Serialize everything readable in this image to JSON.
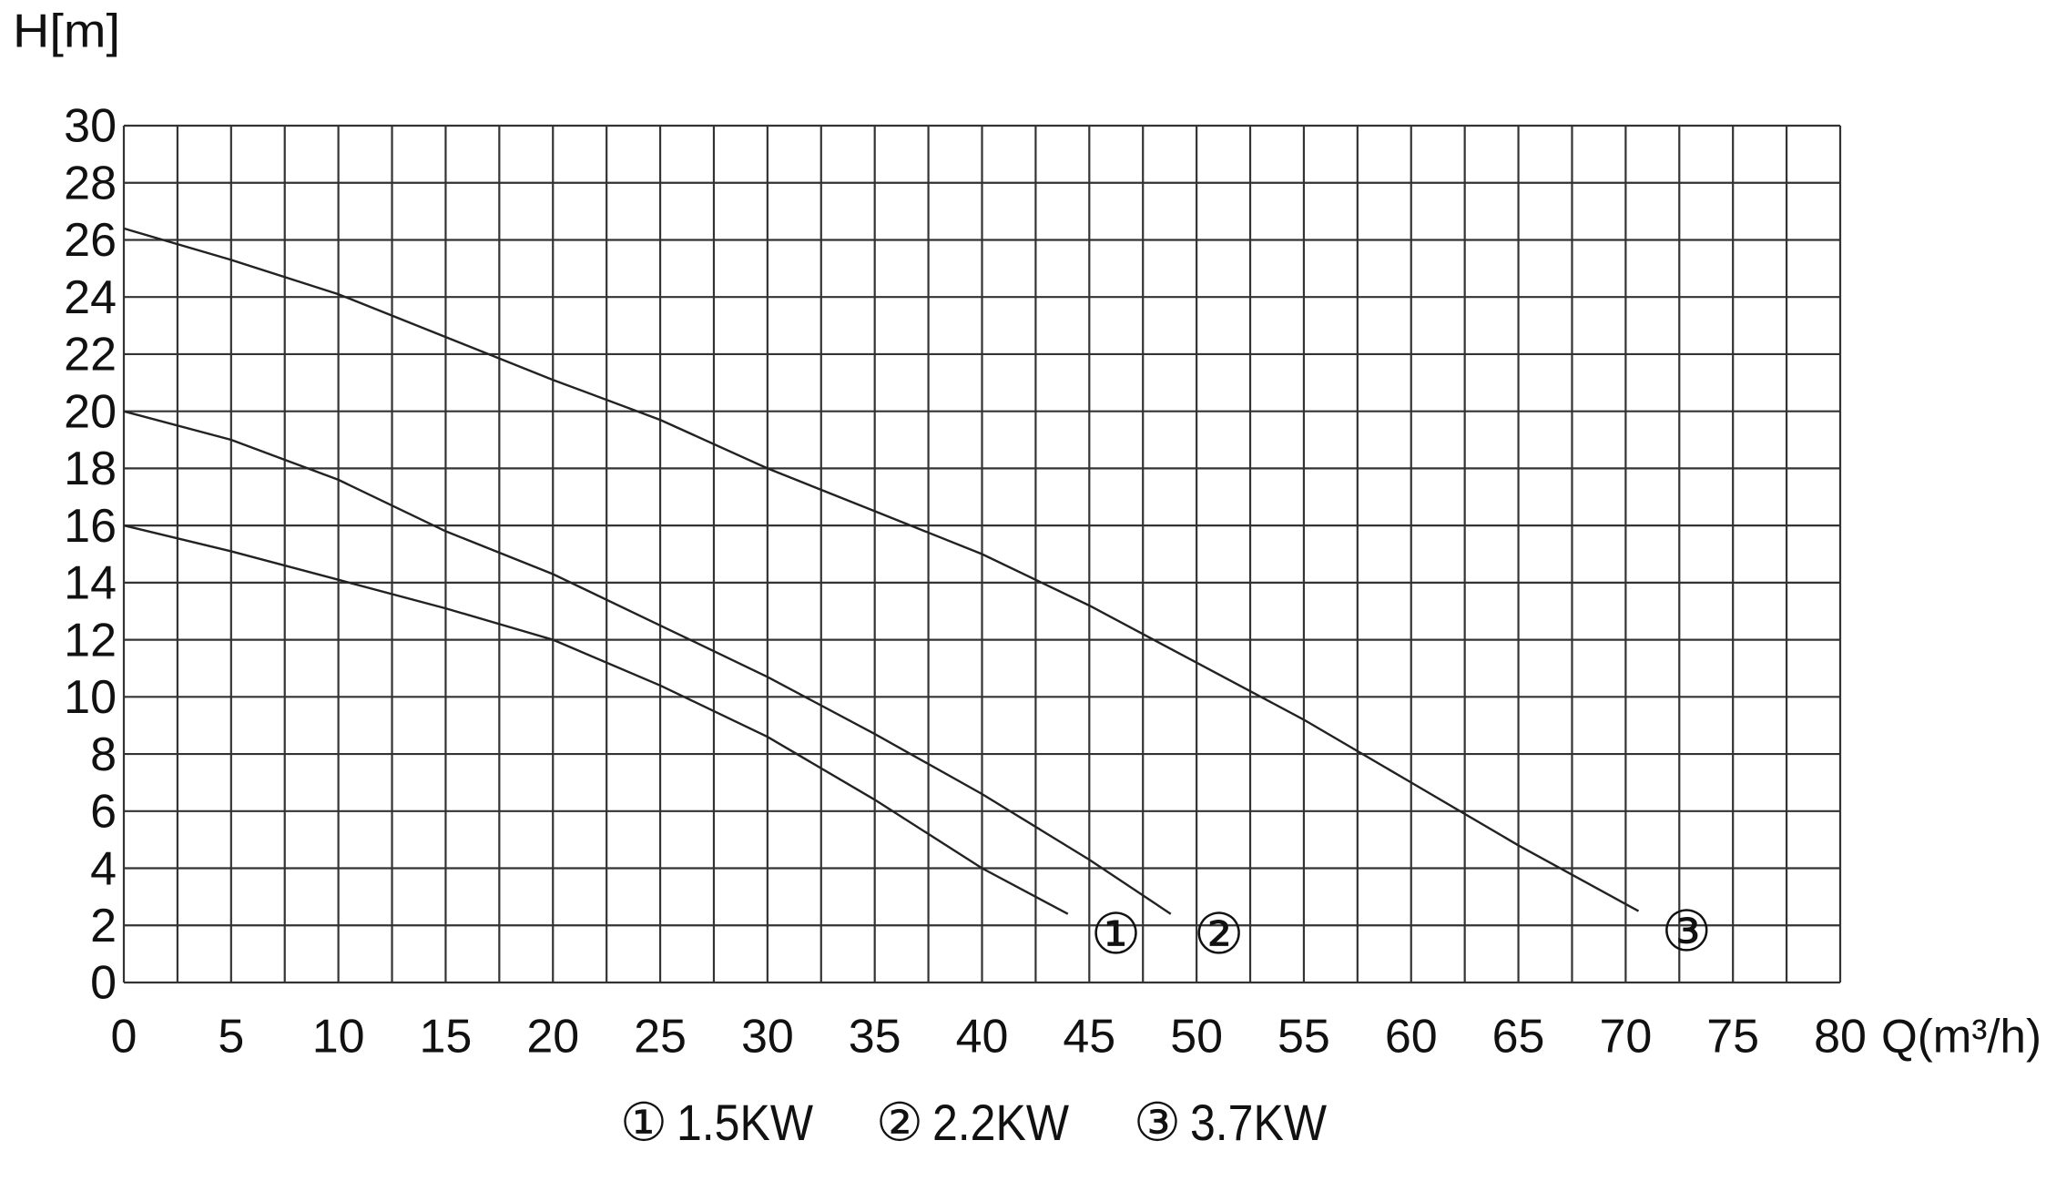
{
  "chart_data": {
    "type": "line",
    "x_label": "Q(m³/h)",
    "y_label": "H[m]",
    "xlim": [
      0,
      80
    ],
    "xticks": [
      0,
      5,
      10,
      15,
      20,
      25,
      30,
      35,
      40,
      45,
      50,
      55,
      60,
      65,
      70,
      75,
      80
    ],
    "ylim": [
      0,
      30
    ],
    "yticks": [
      0,
      2,
      4,
      6,
      8,
      10,
      12,
      14,
      16,
      18,
      20,
      22,
      24,
      26,
      28,
      30
    ],
    "grid": true,
    "series": [
      {
        "name": "1.5KW",
        "marker_label": "①",
        "color": "#222222",
        "x": [
          0,
          5,
          10,
          15,
          20,
          25,
          30,
          35,
          40,
          44
        ],
        "values": [
          16,
          15.1,
          14.1,
          13.1,
          12,
          10.4,
          8.6,
          6.4,
          4.0,
          2.4
        ]
      },
      {
        "name": "2.2KW",
        "marker_label": "②",
        "color": "#222222",
        "x": [
          0,
          5,
          10,
          15,
          20,
          25,
          30,
          35,
          40,
          45,
          48.8
        ],
        "values": [
          20,
          19,
          17.6,
          15.8,
          14.3,
          12.5,
          10.7,
          8.7,
          6.6,
          4.3,
          2.4
        ]
      },
      {
        "name": "3.7KW",
        "marker_label": "③",
        "color": "#222222",
        "x": [
          0,
          5,
          10,
          15,
          20,
          25,
          30,
          35,
          40,
          45,
          50,
          55,
          60,
          65,
          70.6
        ],
        "values": [
          26.4,
          25.3,
          24.1,
          22.6,
          21.1,
          19.7,
          18,
          16.5,
          15,
          13.2,
          11.2,
          9.2,
          7,
          4.8,
          2.5
        ]
      }
    ]
  }
}
